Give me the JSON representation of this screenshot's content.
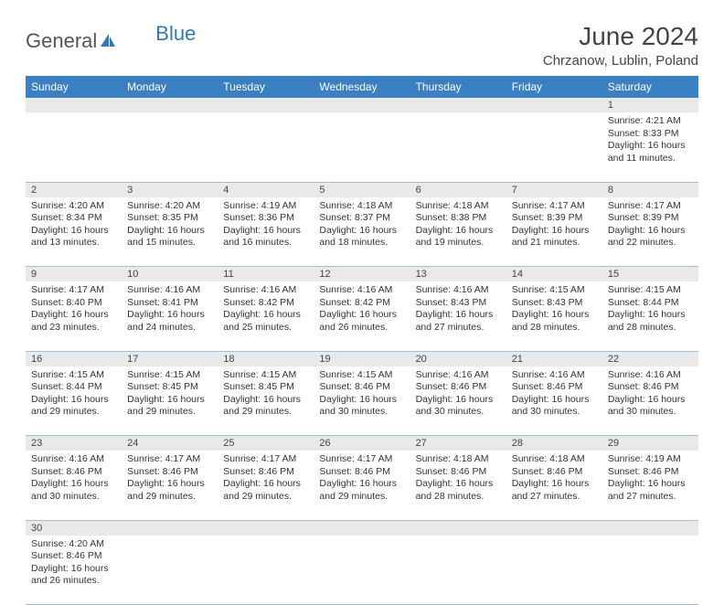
{
  "brand": {
    "part1": "General",
    "part2": "Blue"
  },
  "title": "June 2024",
  "location": "Chrzanow, Lublin, Poland",
  "colors": {
    "header_bg": "#3a80c3",
    "header_text": "#ffffff",
    "daynum_bg": "#e9e9e9",
    "row_border": "#9fbfda",
    "brand_blue": "#2f78bd",
    "text": "#333333"
  },
  "dayHeaders": [
    "Sunday",
    "Monday",
    "Tuesday",
    "Wednesday",
    "Thursday",
    "Friday",
    "Saturday"
  ],
  "weeks": [
    {
      "nums": [
        "",
        "",
        "",
        "",
        "",
        "",
        "1"
      ],
      "cells": [
        null,
        null,
        null,
        null,
        null,
        null,
        {
          "sunrise": "Sunrise: 4:21 AM",
          "sunset": "Sunset: 8:33 PM",
          "daylight1": "Daylight: 16 hours",
          "daylight2": "and 11 minutes."
        }
      ]
    },
    {
      "nums": [
        "2",
        "3",
        "4",
        "5",
        "6",
        "7",
        "8"
      ],
      "cells": [
        {
          "sunrise": "Sunrise: 4:20 AM",
          "sunset": "Sunset: 8:34 PM",
          "daylight1": "Daylight: 16 hours",
          "daylight2": "and 13 minutes."
        },
        {
          "sunrise": "Sunrise: 4:20 AM",
          "sunset": "Sunset: 8:35 PM",
          "daylight1": "Daylight: 16 hours",
          "daylight2": "and 15 minutes."
        },
        {
          "sunrise": "Sunrise: 4:19 AM",
          "sunset": "Sunset: 8:36 PM",
          "daylight1": "Daylight: 16 hours",
          "daylight2": "and 16 minutes."
        },
        {
          "sunrise": "Sunrise: 4:18 AM",
          "sunset": "Sunset: 8:37 PM",
          "daylight1": "Daylight: 16 hours",
          "daylight2": "and 18 minutes."
        },
        {
          "sunrise": "Sunrise: 4:18 AM",
          "sunset": "Sunset: 8:38 PM",
          "daylight1": "Daylight: 16 hours",
          "daylight2": "and 19 minutes."
        },
        {
          "sunrise": "Sunrise: 4:17 AM",
          "sunset": "Sunset: 8:39 PM",
          "daylight1": "Daylight: 16 hours",
          "daylight2": "and 21 minutes."
        },
        {
          "sunrise": "Sunrise: 4:17 AM",
          "sunset": "Sunset: 8:39 PM",
          "daylight1": "Daylight: 16 hours",
          "daylight2": "and 22 minutes."
        }
      ]
    },
    {
      "nums": [
        "9",
        "10",
        "11",
        "12",
        "13",
        "14",
        "15"
      ],
      "cells": [
        {
          "sunrise": "Sunrise: 4:17 AM",
          "sunset": "Sunset: 8:40 PM",
          "daylight1": "Daylight: 16 hours",
          "daylight2": "and 23 minutes."
        },
        {
          "sunrise": "Sunrise: 4:16 AM",
          "sunset": "Sunset: 8:41 PM",
          "daylight1": "Daylight: 16 hours",
          "daylight2": "and 24 minutes."
        },
        {
          "sunrise": "Sunrise: 4:16 AM",
          "sunset": "Sunset: 8:42 PM",
          "daylight1": "Daylight: 16 hours",
          "daylight2": "and 25 minutes."
        },
        {
          "sunrise": "Sunrise: 4:16 AM",
          "sunset": "Sunset: 8:42 PM",
          "daylight1": "Daylight: 16 hours",
          "daylight2": "and 26 minutes."
        },
        {
          "sunrise": "Sunrise: 4:16 AM",
          "sunset": "Sunset: 8:43 PM",
          "daylight1": "Daylight: 16 hours",
          "daylight2": "and 27 minutes."
        },
        {
          "sunrise": "Sunrise: 4:15 AM",
          "sunset": "Sunset: 8:43 PM",
          "daylight1": "Daylight: 16 hours",
          "daylight2": "and 28 minutes."
        },
        {
          "sunrise": "Sunrise: 4:15 AM",
          "sunset": "Sunset: 8:44 PM",
          "daylight1": "Daylight: 16 hours",
          "daylight2": "and 28 minutes."
        }
      ]
    },
    {
      "nums": [
        "16",
        "17",
        "18",
        "19",
        "20",
        "21",
        "22"
      ],
      "cells": [
        {
          "sunrise": "Sunrise: 4:15 AM",
          "sunset": "Sunset: 8:44 PM",
          "daylight1": "Daylight: 16 hours",
          "daylight2": "and 29 minutes."
        },
        {
          "sunrise": "Sunrise: 4:15 AM",
          "sunset": "Sunset: 8:45 PM",
          "daylight1": "Daylight: 16 hours",
          "daylight2": "and 29 minutes."
        },
        {
          "sunrise": "Sunrise: 4:15 AM",
          "sunset": "Sunset: 8:45 PM",
          "daylight1": "Daylight: 16 hours",
          "daylight2": "and 29 minutes."
        },
        {
          "sunrise": "Sunrise: 4:15 AM",
          "sunset": "Sunset: 8:46 PM",
          "daylight1": "Daylight: 16 hours",
          "daylight2": "and 30 minutes."
        },
        {
          "sunrise": "Sunrise: 4:16 AM",
          "sunset": "Sunset: 8:46 PM",
          "daylight1": "Daylight: 16 hours",
          "daylight2": "and 30 minutes."
        },
        {
          "sunrise": "Sunrise: 4:16 AM",
          "sunset": "Sunset: 8:46 PM",
          "daylight1": "Daylight: 16 hours",
          "daylight2": "and 30 minutes."
        },
        {
          "sunrise": "Sunrise: 4:16 AM",
          "sunset": "Sunset: 8:46 PM",
          "daylight1": "Daylight: 16 hours",
          "daylight2": "and 30 minutes."
        }
      ]
    },
    {
      "nums": [
        "23",
        "24",
        "25",
        "26",
        "27",
        "28",
        "29"
      ],
      "cells": [
        {
          "sunrise": "Sunrise: 4:16 AM",
          "sunset": "Sunset: 8:46 PM",
          "daylight1": "Daylight: 16 hours",
          "daylight2": "and 30 minutes."
        },
        {
          "sunrise": "Sunrise: 4:17 AM",
          "sunset": "Sunset: 8:46 PM",
          "daylight1": "Daylight: 16 hours",
          "daylight2": "and 29 minutes."
        },
        {
          "sunrise": "Sunrise: 4:17 AM",
          "sunset": "Sunset: 8:46 PM",
          "daylight1": "Daylight: 16 hours",
          "daylight2": "and 29 minutes."
        },
        {
          "sunrise": "Sunrise: 4:17 AM",
          "sunset": "Sunset: 8:46 PM",
          "daylight1": "Daylight: 16 hours",
          "daylight2": "and 29 minutes."
        },
        {
          "sunrise": "Sunrise: 4:18 AM",
          "sunset": "Sunset: 8:46 PM",
          "daylight1": "Daylight: 16 hours",
          "daylight2": "and 28 minutes."
        },
        {
          "sunrise": "Sunrise: 4:18 AM",
          "sunset": "Sunset: 8:46 PM",
          "daylight1": "Daylight: 16 hours",
          "daylight2": "and 27 minutes."
        },
        {
          "sunrise": "Sunrise: 4:19 AM",
          "sunset": "Sunset: 8:46 PM",
          "daylight1": "Daylight: 16 hours",
          "daylight2": "and 27 minutes."
        }
      ]
    },
    {
      "nums": [
        "30",
        "",
        "",
        "",
        "",
        "",
        ""
      ],
      "cells": [
        {
          "sunrise": "Sunrise: 4:20 AM",
          "sunset": "Sunset: 8:46 PM",
          "daylight1": "Daylight: 16 hours",
          "daylight2": "and 26 minutes."
        },
        null,
        null,
        null,
        null,
        null,
        null
      ]
    }
  ]
}
